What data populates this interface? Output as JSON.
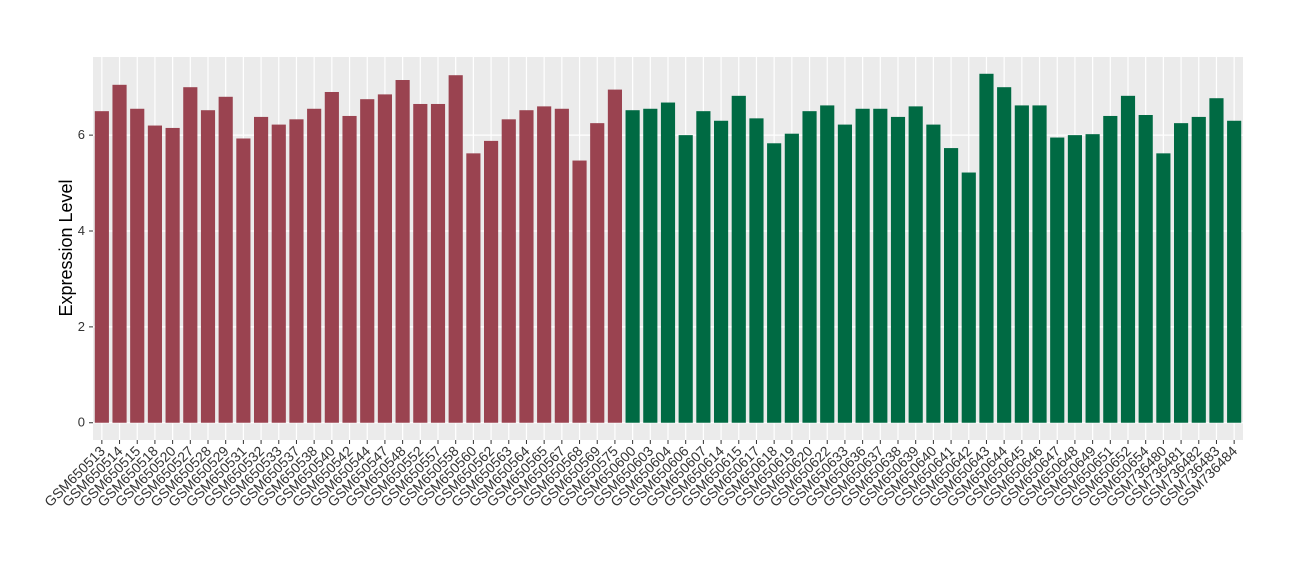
{
  "chart_data": {
    "type": "bar",
    "y_label": "Expression Level",
    "categories": [
      "GSM650513",
      "GSM650514",
      "GSM650515",
      "GSM650518",
      "GSM650520",
      "GSM650527",
      "GSM650528",
      "GSM650529",
      "GSM650531",
      "GSM650532",
      "GSM650533",
      "GSM650537",
      "GSM650538",
      "GSM650540",
      "GSM650542",
      "GSM650544",
      "GSM650547",
      "GSM650548",
      "GSM650552",
      "GSM650557",
      "GSM650558",
      "GSM650560",
      "GSM650562",
      "GSM650563",
      "GSM650564",
      "GSM650565",
      "GSM650567",
      "GSM650568",
      "GSM650569",
      "GSM650575",
      "GSM650600",
      "GSM650603",
      "GSM650604",
      "GSM650606",
      "GSM650607",
      "GSM650614",
      "GSM650615",
      "GSM650617",
      "GSM650618",
      "GSM650619",
      "GSM650620",
      "GSM650622",
      "GSM650633",
      "GSM650636",
      "GSM650637",
      "GSM650638",
      "GSM650639",
      "GSM650640",
      "GSM650641",
      "GSM650642",
      "GSM650643",
      "GSM650644",
      "GSM650645",
      "GSM650646",
      "GSM650647",
      "GSM650648",
      "GSM650649",
      "GSM650651",
      "GSM650652",
      "GSM650654",
      "GSM736480",
      "GSM736481",
      "GSM736482",
      "GSM736483",
      "GSM736484"
    ],
    "values": [
      6.5,
      7.05,
      6.55,
      6.2,
      6.15,
      7.0,
      6.52,
      6.8,
      5.93,
      6.38,
      6.22,
      6.33,
      6.55,
      6.9,
      6.4,
      6.75,
      6.85,
      7.15,
      6.65,
      6.65,
      7.25,
      5.62,
      5.88,
      6.33,
      6.52,
      6.6,
      6.55,
      5.47,
      6.25,
      6.95,
      6.52,
      6.55,
      6.68,
      6.0,
      6.5,
      6.3,
      6.82,
      6.35,
      5.83,
      6.03,
      6.5,
      6.62,
      6.22,
      6.55,
      6.55,
      6.38,
      6.6,
      6.22,
      5.73,
      5.22,
      7.28,
      7.0,
      6.62,
      6.62,
      5.95,
      6.0,
      6.02,
      6.4,
      6.82,
      6.42,
      5.62,
      6.25,
      6.38,
      6.77,
      6.3
    ],
    "colors": [
      "#9a4350",
      "#9a4350",
      "#9a4350",
      "#9a4350",
      "#9a4350",
      "#9a4350",
      "#9a4350",
      "#9a4350",
      "#9a4350",
      "#9a4350",
      "#9a4350",
      "#9a4350",
      "#9a4350",
      "#9a4350",
      "#9a4350",
      "#9a4350",
      "#9a4350",
      "#9a4350",
      "#9a4350",
      "#9a4350",
      "#9a4350",
      "#9a4350",
      "#9a4350",
      "#9a4350",
      "#9a4350",
      "#9a4350",
      "#9a4350",
      "#9a4350",
      "#9a4350",
      "#9a4350",
      "#006a43",
      "#006a43",
      "#006a43",
      "#006a43",
      "#006a43",
      "#006a43",
      "#006a43",
      "#006a43",
      "#006a43",
      "#006a43",
      "#006a43",
      "#006a43",
      "#006a43",
      "#006a43",
      "#006a43",
      "#006a43",
      "#006a43",
      "#006a43",
      "#006a43",
      "#006a43",
      "#006a43",
      "#006a43",
      "#006a43",
      "#006a43",
      "#006a43",
      "#006a43",
      "#006a43",
      "#006a43",
      "#006a43",
      "#006a43",
      "#006a43",
      "#006a43",
      "#006a43",
      "#006a43",
      "#006a43"
    ],
    "ylim": [
      -0.36,
      7.63
    ],
    "yticks": [
      0,
      2,
      4,
      6
    ],
    "grid": true
  }
}
